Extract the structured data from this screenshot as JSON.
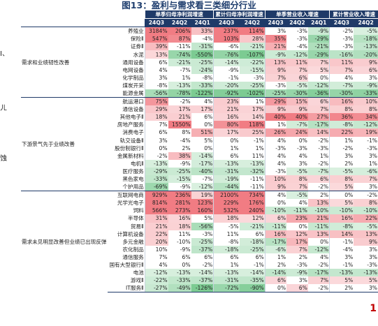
{
  "page_title": "图13：盈利与需求看三类细分行业",
  "left_clip_text": [
    "I、",
    "ㄦ",
    "蚀"
  ],
  "right_clip_text": "1",
  "chart_data": {
    "type": "table",
    "title": "图13：盈利与需求看三类细分行业",
    "metric_groups": [
      "单季归母净利润增速",
      "累计归母净利润增速",
      "单季营业收入增速",
      "累计营业收入增速"
    ],
    "periods": [
      "24Q3",
      "24Q2",
      "24Q1"
    ],
    "groups": [
      {
        "name": "需求和业绩韧性改善",
        "rows": [
          {
            "industry": "养殖业",
            "values": [
              "3184%",
              "206%",
              "33%",
              "237%",
              "114%",
              "3%",
              "-3%",
              "-9%",
              "-2%",
              "-5%"
            ]
          },
          {
            "industry": "保险Ⅱ",
            "values": [
              "547%",
              "87%",
              "-4%",
              "103%",
              "28%",
              "35%",
              "-3%",
              "-29%",
              "-3%",
              "-18%"
            ]
          },
          {
            "industry": "证券Ⅱ",
            "values": [
              "39%",
              "-11%",
              "-31%",
              "-6%",
              "-21%",
              "21%",
              "-4%",
              "-21%",
              "-3%",
              "-13%"
            ]
          },
          {
            "industry": "水泥",
            "values": [
              "13%",
              "-74%",
              "-550%",
              "-76%",
              "-107%",
              "-9%",
              "-12%",
              "-29%",
              "-16%",
              "-20%"
            ]
          },
          {
            "industry": "通用设备",
            "values": [
              "6%",
              "-21%",
              "-25%",
              "-14%",
              "-22%",
              "13%",
              "11%",
              "7%",
              "11%",
              "9%"
            ]
          },
          {
            "industry": "电网设备",
            "values": [
              "4%",
              "-7%",
              "-24%",
              "-9%",
              "-15%",
              "9%",
              "7%",
              "5%",
              "7%",
              "6%"
            ]
          },
          {
            "industry": "化学制品",
            "values": [
              "3%",
              "1%",
              "-8%",
              "-1%",
              "-3%",
              "7%",
              "6%",
              "0%",
              "4%",
              "3%"
            ]
          },
          {
            "industry": "煤炭开采",
            "values": [
              "-8%",
              "-13%",
              "-33%",
              "-20%",
              "-25%",
              "-3%",
              "-5%",
              "-12%",
              "-7%",
              "-9%"
            ]
          },
          {
            "industry": "能源金属",
            "values": [
              "-56%",
              "-78%",
              "-122%",
              "-92%",
              "-102%",
              "-25%",
              "-30%",
              "-36%",
              "-30%",
              "-33%"
            ]
          }
        ]
      },
      {
        "name": "下游景气先于业绩改善",
        "rows": [
          {
            "industry": "航运港口",
            "values": [
              "75%",
              "-2%",
              "4%",
              "23%",
              "1%",
              "29%",
              "15%",
              "6%",
              "16%",
              "10%"
            ]
          },
          {
            "industry": "通信设备",
            "values": [
              "29%",
              "17%",
              "17%",
              "21%",
              "17%",
              "9%",
              "9%",
              "7%",
              "8%",
              "8%"
            ]
          },
          {
            "industry": "其他电子Ⅱ",
            "values": [
              "18%",
              "21%",
              "6%",
              "16%",
              "14%",
              "40%",
              "40%",
              "27%",
              "36%",
              "34%"
            ]
          },
          {
            "industry": "房地产服务",
            "values": [
              "7%",
              "1550%",
              "0%",
              "80%",
              "118%",
              "1%",
              "-7%",
              "-17%",
              "-8%",
              "-12%"
            ]
          },
          {
            "industry": "消费电子",
            "values": [
              "6%",
              "8%",
              "51%",
              "17%",
              "25%",
              "26%",
              "24%",
              "14%",
              "22%",
              "19%"
            ]
          },
          {
            "industry": "轨交设备Ⅱ",
            "values": [
              "3%",
              "-4%",
              "5%",
              "0%",
              "-1%",
              "4%",
              "0%",
              "-2%",
              "1%",
              "-1%"
            ]
          },
          {
            "industry": "股份制银行Ⅱ",
            "values": [
              "0%",
              "2%",
              "0%",
              "1%",
              "1%",
              "-3%",
              "-3%",
              "-3%",
              "-2%",
              "-3%"
            ]
          },
          {
            "industry": "金属新材料",
            "values": [
              "-2%",
              "38%",
              "-14%",
              "6%",
              "11%",
              "4%",
              "4%",
              "1%",
              "3%",
              "3%"
            ]
          },
          {
            "industry": "电机Ⅱ",
            "values": [
              "-13%",
              "-9%",
              "-17%",
              "-13%",
              "-13%",
              "4%",
              "3%",
              "-2%",
              "2%",
              "1%"
            ]
          },
          {
            "industry": "医疗服务",
            "values": [
              "-29%",
              "-25%",
              "-40%",
              "-31%",
              "-32%",
              "-3%",
              "-5%",
              "-7%",
              "-5%",
              "-6%"
            ]
          },
          {
            "industry": "黑色家电",
            "values": [
              "-33%",
              "-15%",
              "-7%",
              "-19%",
              "-11%",
              "10%",
              "8%",
              "6%",
              "8%",
              "7%"
            ]
          },
          {
            "industry": "个护用品",
            "values": [
              "-69%",
              "-9%",
              "-12%",
              "-44%",
              "-11%",
              "9%",
              "7%",
              "-2%",
              "5%",
              "3%"
            ]
          }
        ]
      },
      {
        "name": "需求未见明显改善但业绩已出现反弹",
        "rows": [
          {
            "industry": "互联网电商",
            "values": [
              "929%",
              "236%",
              "19%",
              "2100%",
              "734%",
              "4%",
              "-5%",
              "2%",
              "0%",
              "-2%"
            ]
          },
          {
            "industry": "光学光电子",
            "values": [
              "814%",
              "281%",
              "123%",
              "229%",
              "176%",
              "0%",
              "4%",
              "13%",
              "5%",
              "8%"
            ]
          },
          {
            "industry": "饲料",
            "values": [
              "566%",
              "273%",
              "160%",
              "532%",
              "240%",
              "-10%",
              "-11%",
              "-10%",
              "-10%",
              "-10%"
            ]
          },
          {
            "industry": "半导体",
            "values": [
              "31%",
              "16%",
              "5%",
              "18%",
              "12%",
              "6%",
              "23%",
              "21%",
              "16%",
              "22%"
            ]
          },
          {
            "industry": "贸易Ⅱ",
            "values": [
              "21%",
              "18%",
              "-56%",
              "-5%",
              "-21%",
              "-11%",
              "0%",
              "-11%",
              "-8%",
              "-5%"
            ]
          },
          {
            "industry": "计算机设备",
            "values": [
              "22%",
              "11%",
              "-3%",
              "11%",
              "6%",
              "16%",
              "12%",
              "13%",
              "14%",
              "13%"
            ]
          },
          {
            "industry": "多元金融",
            "values": [
              "20%",
              "-10%",
              "-25%",
              "-8%",
              "-18%",
              "-17%",
              "17%",
              "0%",
              "-1%",
              "9%"
            ]
          },
          {
            "industry": "农化制品",
            "values": [
              "10%",
              "-9%",
              "-37%",
              "-18%",
              "-25%",
              "-6%",
              "7%",
              "-12%",
              "-4%",
              "3%"
            ]
          },
          {
            "industry": "通信服务",
            "values": [
              "7%",
              "6%",
              "6%",
              "6%",
              "6%",
              "1%",
              "2%",
              "4%",
              "3%",
              "3%"
            ]
          },
          {
            "industry": "国有大型银行Ⅱ",
            "values": [
              "4%",
              "0%",
              "-2%",
              "1%",
              "-1%",
              "2%",
              "-3%",
              "-2%",
              "-1%",
              "-3%"
            ]
          },
          {
            "industry": "电池",
            "values": [
              "-12%",
              "-13%",
              "-14%",
              "-13%",
              "-14%",
              "-14%",
              "-9%",
              "-17%",
              "-13%",
              "-13%"
            ]
          },
          {
            "industry": "游戏Ⅱ",
            "values": [
              "-22%",
              "-33%",
              "-37%",
              "-31%",
              "-35%",
              "6%",
              "3%",
              "7%",
              "5%",
              "5%"
            ]
          },
          {
            "industry": "IT服务Ⅱ",
            "values": [
              "-27%",
              "-49%",
              "-126%",
              "-72%",
              "-90%",
              "0%",
              "6%",
              "-2%",
              "2%",
              "3%"
            ]
          }
        ]
      }
    ]
  }
}
